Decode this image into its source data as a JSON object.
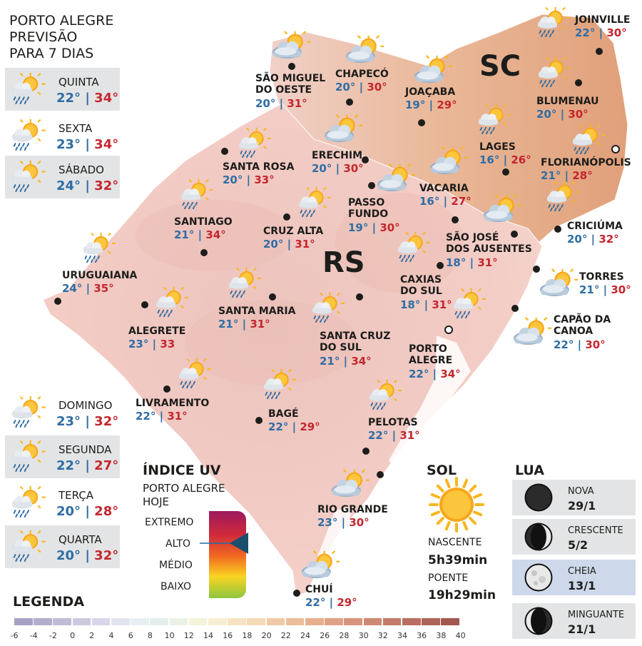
{
  "header": {
    "line1": "PORTO ALEGRE",
    "line2": "PREVISÃO",
    "line3": "PARA 7 DIAS"
  },
  "forecast": [
    {
      "day": "QUINTA",
      "min": "22°",
      "max": "34°",
      "icon": "sun-cloud-rain-icon"
    },
    {
      "day": "SEXTA",
      "min": "23°",
      "max": "34°",
      "icon": "sun-cloud-rain-icon"
    },
    {
      "day": "SÁBADO",
      "min": "24°",
      "max": "32°",
      "icon": "sun-cloud-rain-icon"
    },
    {
      "day": "DOMINGO",
      "min": "23°",
      "max": "32°",
      "icon": "sun-cloud-rain-icon"
    },
    {
      "day": "SEGUNDA",
      "min": "22°",
      "max": "27°",
      "icon": "sun-cloud-rain-icon"
    },
    {
      "day": "TERÇA",
      "min": "20°",
      "max": "28°",
      "icon": "sun-cloud-rain-icon"
    },
    {
      "day": "QUARTA",
      "min": "20°",
      "max": "32°",
      "icon": "sun-cloud-rain-icon"
    }
  ],
  "states": {
    "sc": "SC",
    "rs": "RS"
  },
  "cities": [
    {
      "name": "SÃO MIGUEL\nDO OESTE",
      "min": "20°",
      "max": "31°"
    },
    {
      "name": "CHAPECÓ",
      "min": "20°",
      "max": "30°"
    },
    {
      "name": "JOAÇABA",
      "min": "19°",
      "max": "29°"
    },
    {
      "name": "JOINVILLE",
      "min": "22°",
      "max": "30°"
    },
    {
      "name": "BLUMENAU",
      "min": "20°",
      "max": "30°"
    },
    {
      "name": "LAGES",
      "min": "16°",
      "max": "26°"
    },
    {
      "name": "FLORIANÓPOLIS",
      "min": "21°",
      "max": "28°"
    },
    {
      "name": "SANTA ROSA",
      "min": "20°",
      "max": "33°"
    },
    {
      "name": "ERECHIM",
      "min": "20°",
      "max": "30°"
    },
    {
      "name": "VACARIA",
      "min": "16°",
      "max": "27°"
    },
    {
      "name": "PASSO\nFUNDO",
      "min": "19°",
      "max": "30°"
    },
    {
      "name": "SANTIAGO",
      "min": "21°",
      "max": "34°"
    },
    {
      "name": "CRUZ ALTA",
      "min": "20°",
      "max": "31°"
    },
    {
      "name": "SÃO JOSÉ\nDOS AUSENTES",
      "min": "18°",
      "max": "31°"
    },
    {
      "name": "CRICIÚMA",
      "min": "20°",
      "max": "32°"
    },
    {
      "name": "URUGUAIANA",
      "min": "24°",
      "max": "35°"
    },
    {
      "name": "TORRES",
      "min": "21°",
      "max": "30°"
    },
    {
      "name": "CAXIAS\nDO SUL",
      "min": "18°",
      "max": "31°"
    },
    {
      "name": "SANTA MARIA",
      "min": "21°",
      "max": "31°"
    },
    {
      "name": "ALEGRETE",
      "min": "23°",
      "max": "33"
    },
    {
      "name": "CAPÃO DA\nCANOA",
      "min": "22°",
      "max": "30°"
    },
    {
      "name": "SANTA CRUZ\nDO SUL",
      "min": "21°",
      "max": "34°"
    },
    {
      "name": "PORTO\nALEGRE",
      "min": "22°",
      "max": "34°"
    },
    {
      "name": "LIVRAMENTO",
      "min": "22°",
      "max": "31°"
    },
    {
      "name": "BAGÉ",
      "min": "22°",
      "max": "29°"
    },
    {
      "name": "PELOTAS",
      "min": "22°",
      "max": "31°"
    },
    {
      "name": "RIO GRANDE",
      "min": "23°",
      "max": "30°"
    },
    {
      "name": "CHUÍ",
      "min": "22°",
      "max": "29°"
    }
  ],
  "uv": {
    "title": "ÍNDICE UV",
    "subtitle1": "PORTO ALEGRE",
    "subtitle2": "HOJE",
    "levels": [
      "EXTREMO",
      "ALTO",
      "MÉDIO",
      "BAIXO"
    ],
    "current_level": "ALTO",
    "colors": [
      "#9c1a5e",
      "#e33a2a",
      "#f7941d",
      "#f9d423",
      "#8dc63f"
    ]
  },
  "sun": {
    "title": "SOL",
    "sunrise_label": "NASCENTE",
    "sunrise": "5h39min",
    "sunset_label": "POENTE",
    "sunset": "19h29min"
  },
  "moon": {
    "title": "LUA",
    "phases": [
      {
        "name": "NOVA",
        "date": "29/1"
      },
      {
        "name": "CRESCENTE",
        "date": "5/2"
      },
      {
        "name": "CHEIA",
        "date": "13/1"
      },
      {
        "name": "MINGUANTE",
        "date": "21/1"
      }
    ]
  },
  "legend": {
    "title": "LEGENDA",
    "ticks": [
      "-6",
      "-4",
      "-2",
      "0",
      "2",
      "4",
      "6",
      "8",
      "10",
      "12",
      "14",
      "16",
      "18",
      "20",
      "22",
      "24",
      "26",
      "28",
      "30",
      "32",
      "34",
      "36",
      "38",
      "40"
    ],
    "colors": [
      "#a6a1c4",
      "#b3aecd",
      "#c0bcd6",
      "#ccc9df",
      "#d8d6e8",
      "#e2e4ef",
      "#e8eef3",
      "#e3efec",
      "#e9f2e4",
      "#f4f3dc",
      "#f7edd2",
      "#f6e3c3",
      "#f4d9b5",
      "#efcaa4",
      "#ebbd99",
      "#e6b08f",
      "#e0a287",
      "#d8947e",
      "#cf8874",
      "#c47b6a",
      "#b96e61",
      "#ae6358",
      "#a3584f"
    ]
  }
}
